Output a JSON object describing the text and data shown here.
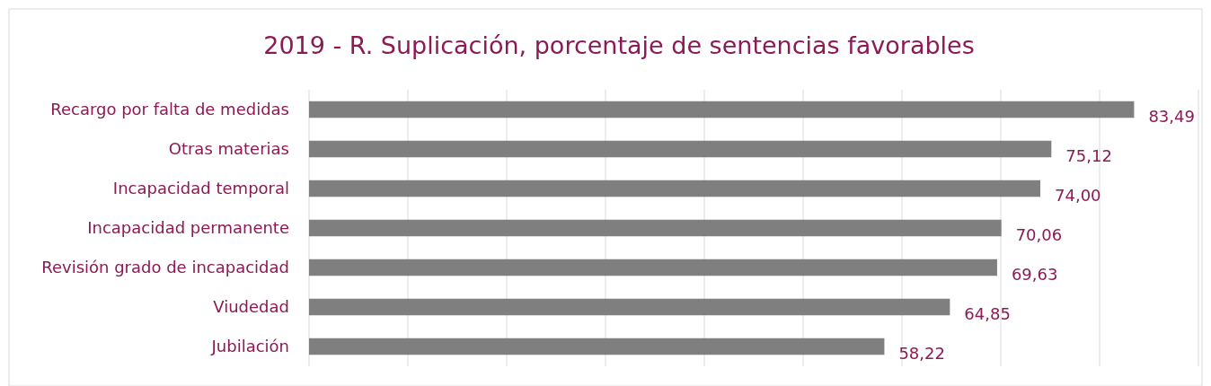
{
  "chart_data": {
    "type": "bar",
    "orientation": "horizontal",
    "title": "2019 - R. Suplicación, porcentaje de sentencias favorables",
    "categories": [
      "Recargo por falta de medidas",
      "Otras materias",
      "Incapacidad temporal",
      "Incapacidad permanente",
      "Revisión grado de incapacidad",
      "Viudedad",
      "Jubilación"
    ],
    "values": [
      83.49,
      75.12,
      74.0,
      70.06,
      69.63,
      64.85,
      58.22
    ],
    "value_labels": [
      "83,49",
      "75,12",
      "74,00",
      "70,06",
      "69,63",
      "64,85",
      "58,22"
    ],
    "color": "#7f7f7f",
    "xlim": [
      0,
      90
    ],
    "xticks": [
      {
        "value": 0,
        "label": null
      },
      {
        "value": 10,
        "label": null
      },
      {
        "value": 20,
        "label": null
      },
      {
        "value": 30,
        "label": null
      },
      {
        "value": 40,
        "label": null
      },
      {
        "value": 50,
        "label": null
      },
      {
        "value": 60,
        "label": null
      },
      {
        "value": 70,
        "label": null
      },
      {
        "value": 80,
        "label": null
      },
      {
        "value": 90,
        "label": null
      }
    ],
    "grid": "x",
    "tick_labels": "y"
  }
}
